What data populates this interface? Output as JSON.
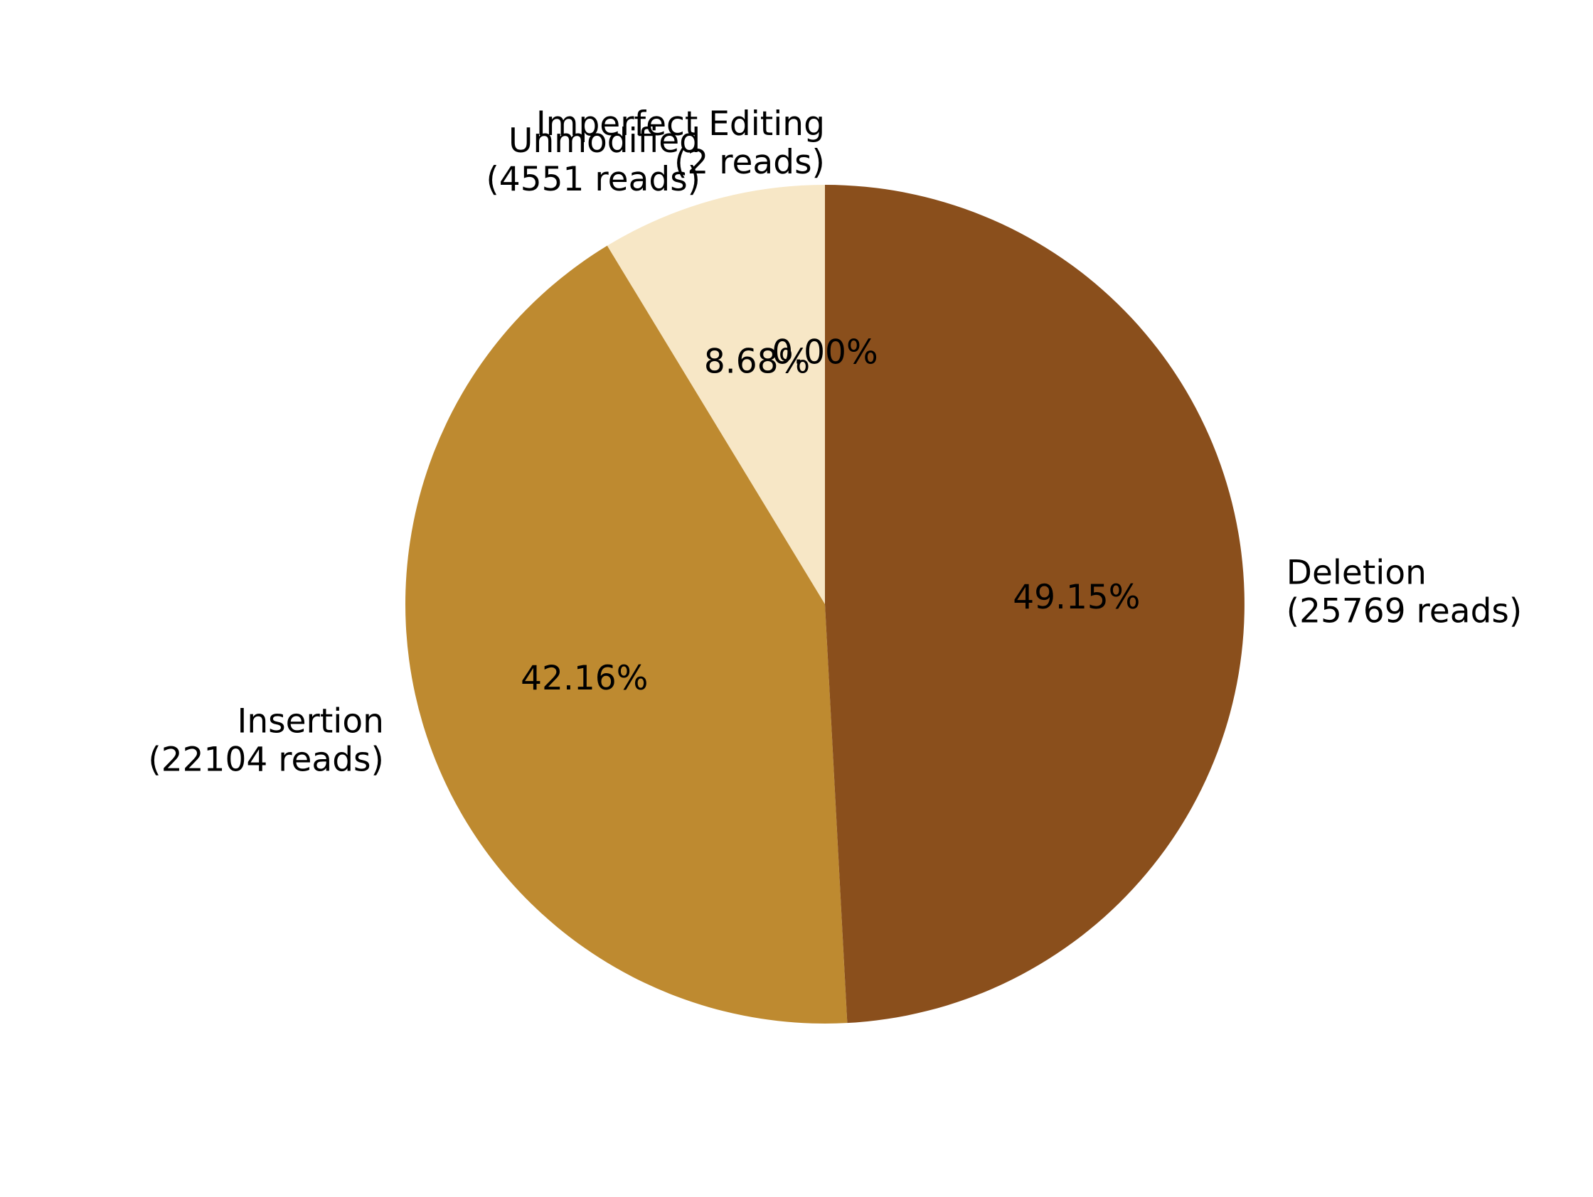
{
  "chart_data": {
    "type": "pie",
    "title": "",
    "start_angle_deg": 90,
    "direction": "counterclockwise",
    "slices": [
      {
        "category": "Imperfect Editing",
        "reads_text": "(2 reads)",
        "reads": 2,
        "percent_label": "0.00%",
        "color": "#F2C94C"
      },
      {
        "category": "Unmodified",
        "reads_text": "(4551 reads)",
        "reads": 4551,
        "percent_label": "8.68%",
        "color": "#F7E7C6"
      },
      {
        "category": "Insertion",
        "reads_text": "(22104 reads)",
        "reads": 22104,
        "percent_label": "42.16%",
        "color": "#BE8A30"
      },
      {
        "category": "Deletion",
        "reads_text": "(25769 reads)",
        "reads": 25769,
        "percent_label": "49.15%",
        "color": "#8A4F1C"
      }
    ]
  }
}
